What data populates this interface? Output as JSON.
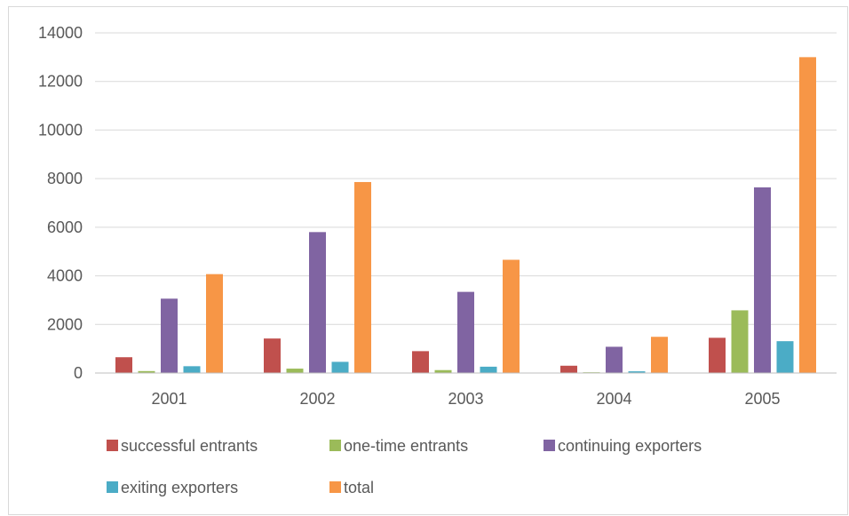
{
  "chart_data": {
    "type": "bar",
    "title": "",
    "xlabel": "",
    "ylabel": "",
    "categories": [
      "2001",
      "2002",
      "2003",
      "2004",
      "2005"
    ],
    "ylim": [
      0,
      14000
    ],
    "yticks": [
      0,
      2000,
      4000,
      6000,
      8000,
      10000,
      12000,
      14000
    ],
    "grid": true,
    "legend_position": "bottom",
    "series": [
      {
        "name": "successful entrants",
        "color": "#c0504d",
        "values": [
          650,
          1420,
          900,
          300,
          1450
        ]
      },
      {
        "name": "one-time entrants",
        "color": "#9bbb59",
        "values": [
          80,
          180,
          120,
          30,
          2580
        ]
      },
      {
        "name": "continuing exporters",
        "color": "#8064a2",
        "values": [
          3060,
          5800,
          3340,
          1080,
          7640
        ]
      },
      {
        "name": "exiting exporters",
        "color": "#4bacc6",
        "values": [
          280,
          460,
          260,
          70,
          1310
        ]
      },
      {
        "name": "total",
        "color": "#f79646",
        "values": [
          4070,
          7860,
          4660,
          1490,
          13000
        ]
      }
    ]
  }
}
